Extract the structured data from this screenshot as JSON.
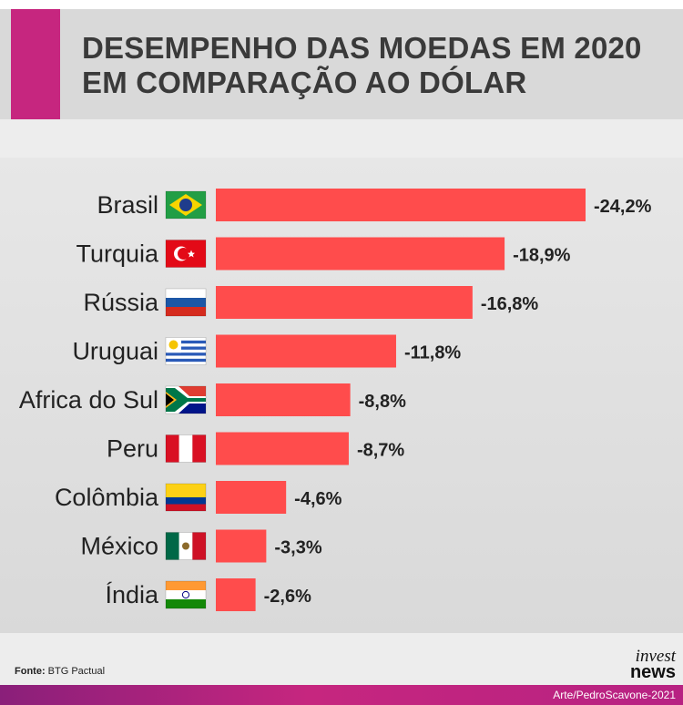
{
  "title": {
    "line1": "DESEMPENHO DAS MOEDAS EM 2020",
    "line2": "EM COMPARAÇÃO AO DÓLAR"
  },
  "footer": {
    "source_label": "Fonte:",
    "source_value": " BTG Pactual",
    "logo_line1": "invest",
    "logo_line2": "news",
    "credit": "Arte/PedroScavone-2021"
  },
  "colors": {
    "bar": "#ff4c4c",
    "accent": "#c6267f"
  },
  "chart_data": {
    "type": "bar",
    "orientation": "horizontal",
    "categories": [
      "Brasil",
      "Turquia",
      "Rússia",
      "Uruguai",
      "Africa do Sul",
      "Peru",
      "Colômbia",
      "México",
      "Índia"
    ],
    "values": [
      -24.2,
      -18.9,
      -16.8,
      -11.8,
      -8.8,
      -8.7,
      -4.6,
      -3.3,
      -2.6
    ],
    "labels": [
      "-24,2%",
      "-18,9%",
      "-16,8%",
      "-11,8%",
      "-8,8%",
      "-8,7%",
      "-4,6%",
      "-3,3%",
      "-2,6%"
    ],
    "flags": [
      "brazil-flag-icon",
      "turkey-flag-icon",
      "russia-flag-icon",
      "uruguay-flag-icon",
      "south-africa-flag-icon",
      "peru-flag-icon",
      "colombia-flag-icon",
      "mexico-flag-icon",
      "india-flag-icon"
    ],
    "grid": false,
    "legend": "none"
  }
}
